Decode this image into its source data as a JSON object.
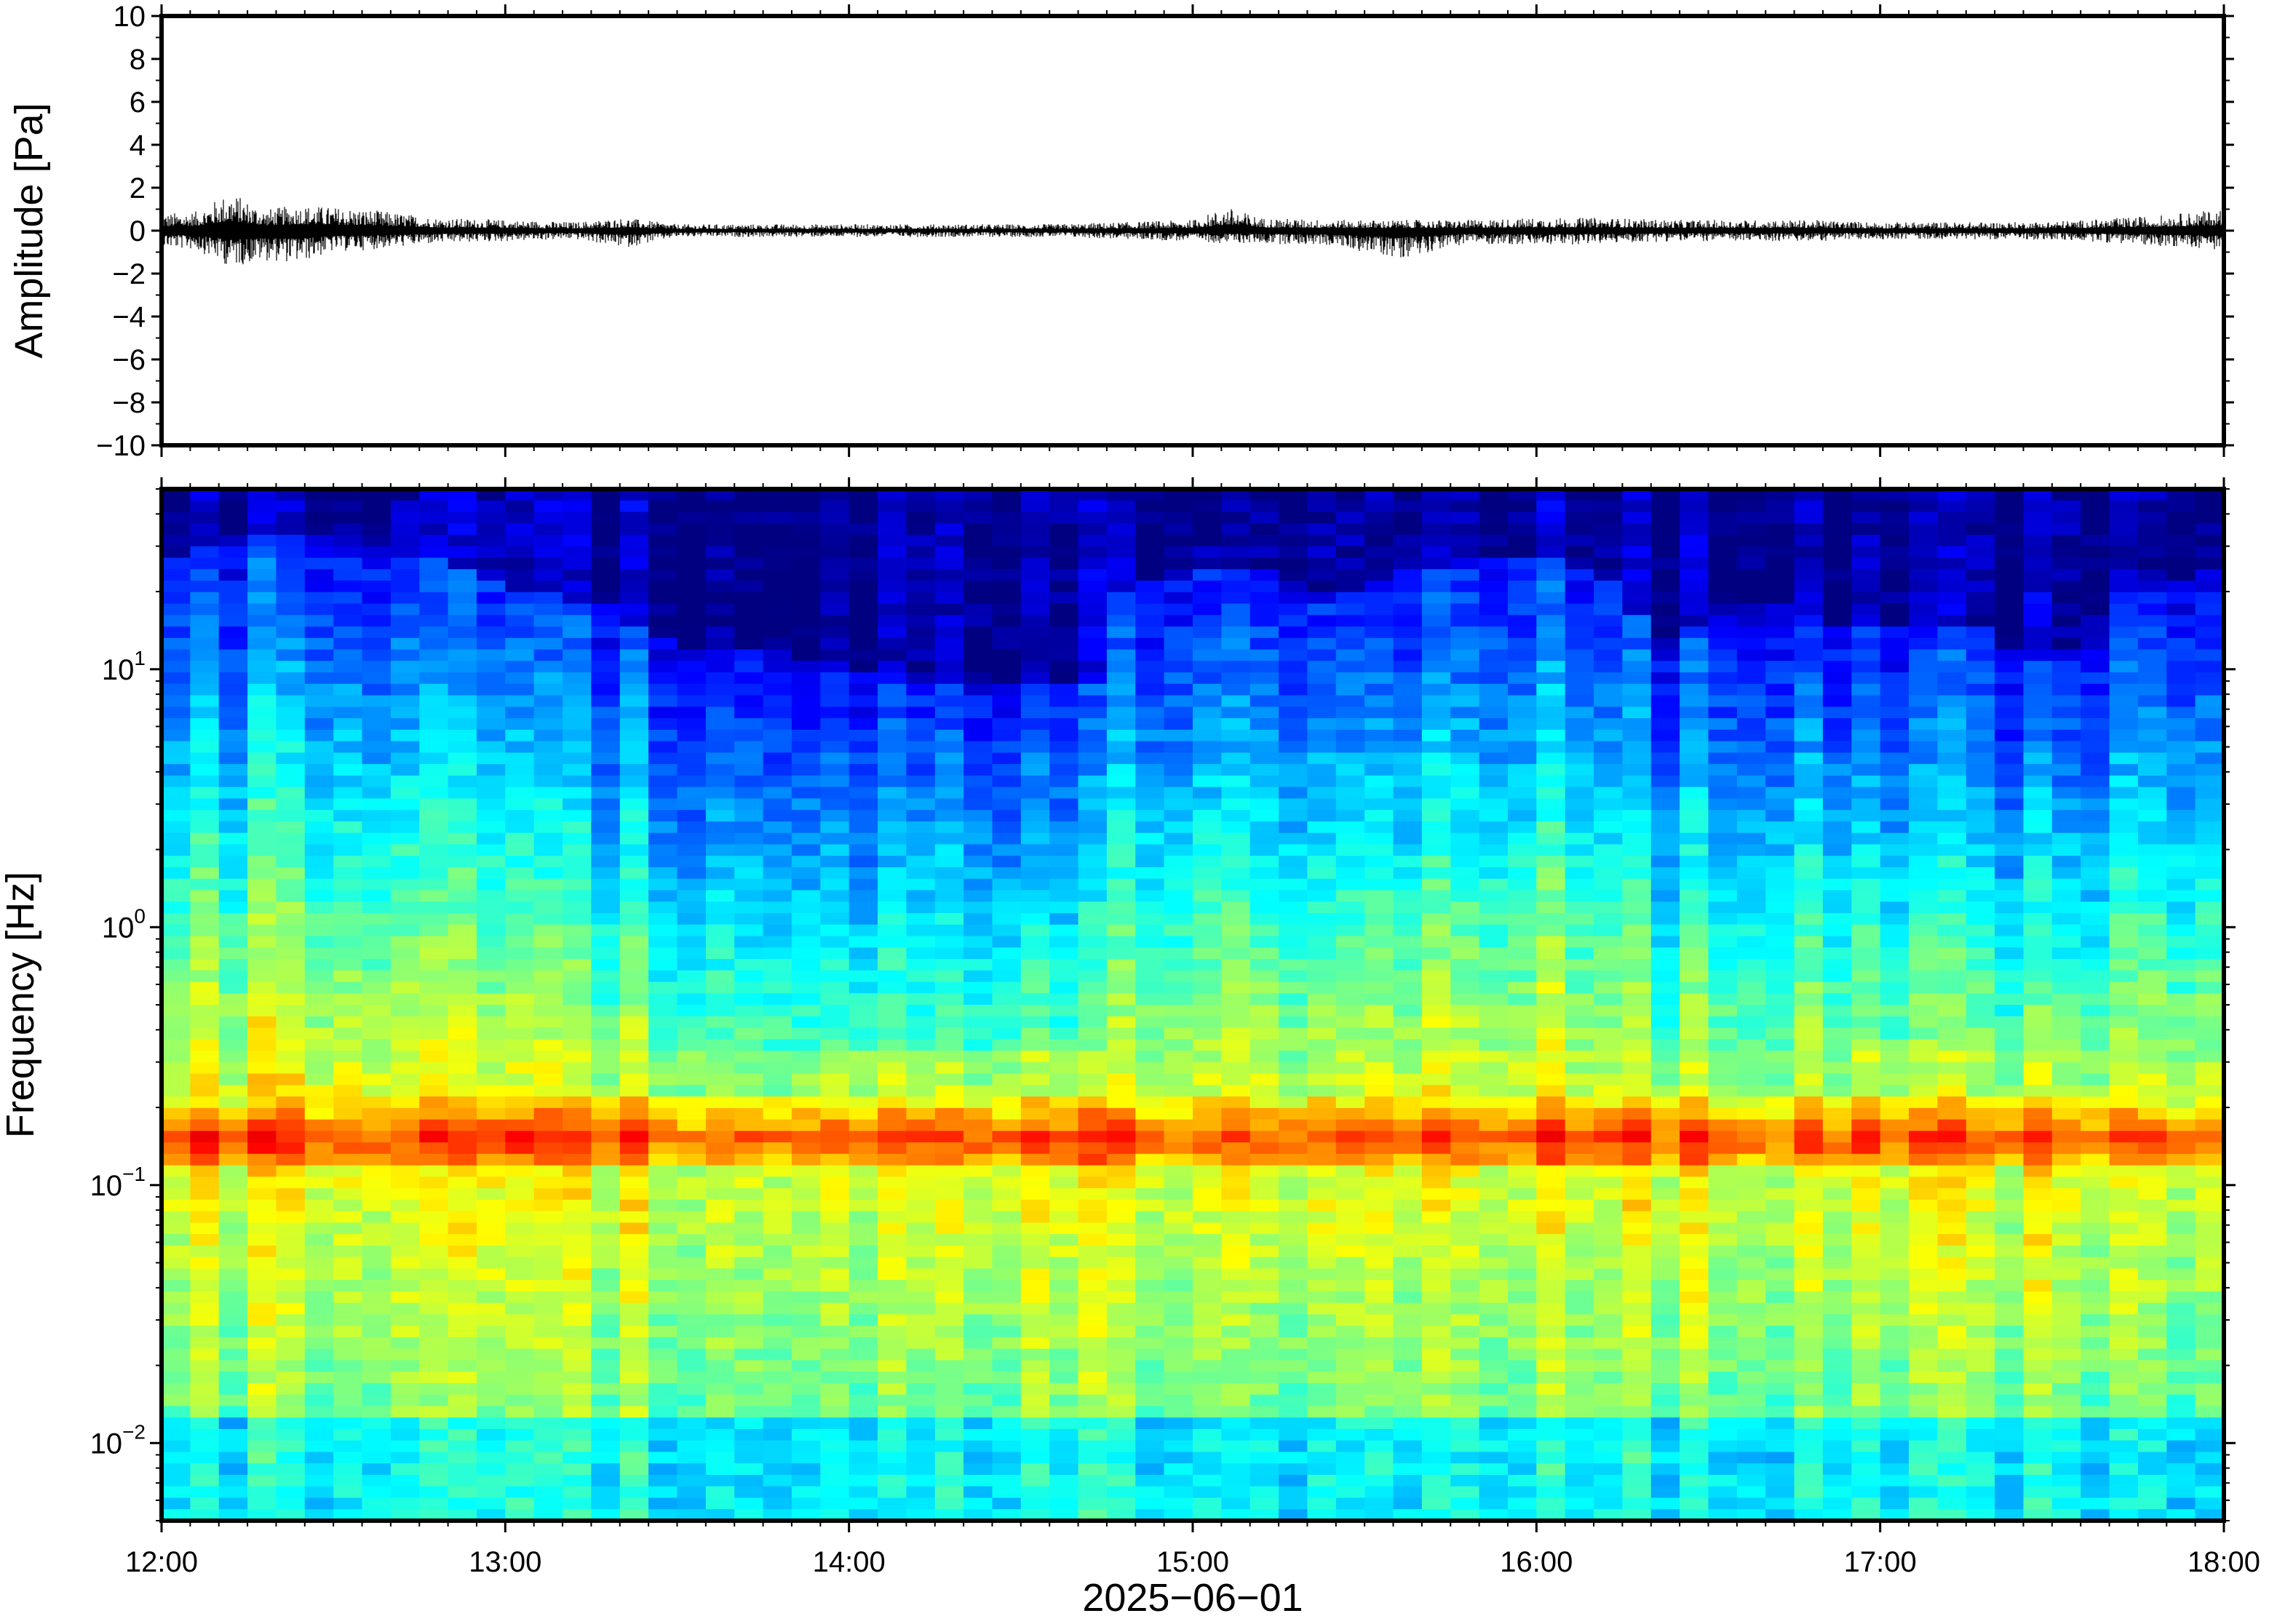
{
  "chart_data": [
    {
      "type": "line",
      "panel": "waveform",
      "ylabel": "Amplitude [Pa]",
      "ylim": [
        -10,
        10
      ],
      "yticks": [
        "10",
        "8",
        "6",
        "4",
        "2",
        "0",
        "−2",
        "−4",
        "−6",
        "−8",
        "−10"
      ],
      "ytick_values": [
        10,
        8,
        6,
        4,
        2,
        0,
        -2,
        -4,
        -6,
        -8,
        -10
      ],
      "xlim_hours": [
        12,
        18
      ],
      "line_color": "#000000",
      "envelope": {
        "x_hours": [
          12.0,
          12.1,
          12.2,
          12.3,
          12.4,
          12.5,
          12.6,
          12.8,
          13.0,
          13.2,
          13.35,
          13.5,
          13.8,
          14.0,
          14.3,
          14.6,
          14.8,
          15.0,
          15.1,
          15.2,
          15.4,
          15.6,
          15.8,
          16.0,
          16.2,
          16.4,
          16.6,
          16.8,
          17.0,
          17.2,
          17.4,
          17.6,
          17.8,
          18.0
        ],
        "max_pa": [
          0.8,
          0.9,
          1.8,
          1.0,
          1.2,
          1.1,
          1.0,
          0.6,
          0.5,
          0.4,
          0.6,
          0.3,
          0.3,
          0.3,
          0.3,
          0.3,
          0.4,
          0.5,
          1.1,
          0.6,
          0.5,
          0.5,
          0.5,
          0.6,
          0.6,
          0.5,
          0.5,
          0.5,
          0.4,
          0.4,
          0.4,
          0.5,
          0.7,
          1.0
        ],
        "min_pa": [
          -0.8,
          -0.9,
          -1.7,
          -1.4,
          -1.5,
          -1.0,
          -0.9,
          -0.6,
          -0.5,
          -0.4,
          -0.8,
          -0.3,
          -0.3,
          -0.3,
          -0.3,
          -0.3,
          -0.4,
          -0.5,
          -0.6,
          -0.6,
          -0.7,
          -1.3,
          -0.6,
          -0.7,
          -0.6,
          -0.5,
          -0.5,
          -0.5,
          -0.4,
          -0.4,
          -0.4,
          -0.5,
          -0.7,
          -0.9
        ]
      }
    },
    {
      "type": "heatmap",
      "panel": "spectrogram",
      "ylabel": "Frequency [Hz]",
      "xlabel": "2025−06−01",
      "yscale": "log",
      "ylim": [
        0.005,
        50
      ],
      "yticks": [
        {
          "base": "10",
          "exp": "1",
          "value": 10
        },
        {
          "base": "10",
          "exp": "0",
          "value": 1
        },
        {
          "base": "10",
          "exp": "−1",
          "value": 0.1
        },
        {
          "base": "10",
          "exp": "−2",
          "value": 0.01
        }
      ],
      "xticks": [
        "12:00",
        "13:00",
        "14:00",
        "15:00",
        "16:00",
        "17:00",
        "18:00"
      ],
      "xtick_hours": [
        12,
        13,
        14,
        15,
        16,
        17,
        18
      ],
      "xlim_hours": [
        12,
        18
      ],
      "colormap": "jet",
      "column_hours": [
        12.05,
        12.2,
        12.4,
        12.6,
        12.8,
        13.05,
        13.3,
        13.55,
        13.75,
        14.0,
        14.25,
        14.5,
        14.7,
        14.8,
        15.0,
        15.2,
        15.4,
        15.6,
        15.8,
        16.0,
        16.2,
        16.35,
        16.5,
        16.7,
        16.9,
        17.1,
        17.3,
        17.5,
        17.7,
        17.9,
        18.0
      ],
      "upper_edge_hz": [
        28,
        32,
        35,
        30,
        26,
        20,
        17,
        12,
        12,
        10,
        9,
        9,
        8,
        22,
        24,
        25,
        18,
        24,
        27,
        28,
        24,
        12,
        16,
        18,
        15,
        14,
        14,
        10,
        20,
        22,
        25
      ],
      "low_freq_band_hz": 0.15,
      "x_hours_range": [
        12,
        18
      ]
    }
  ]
}
